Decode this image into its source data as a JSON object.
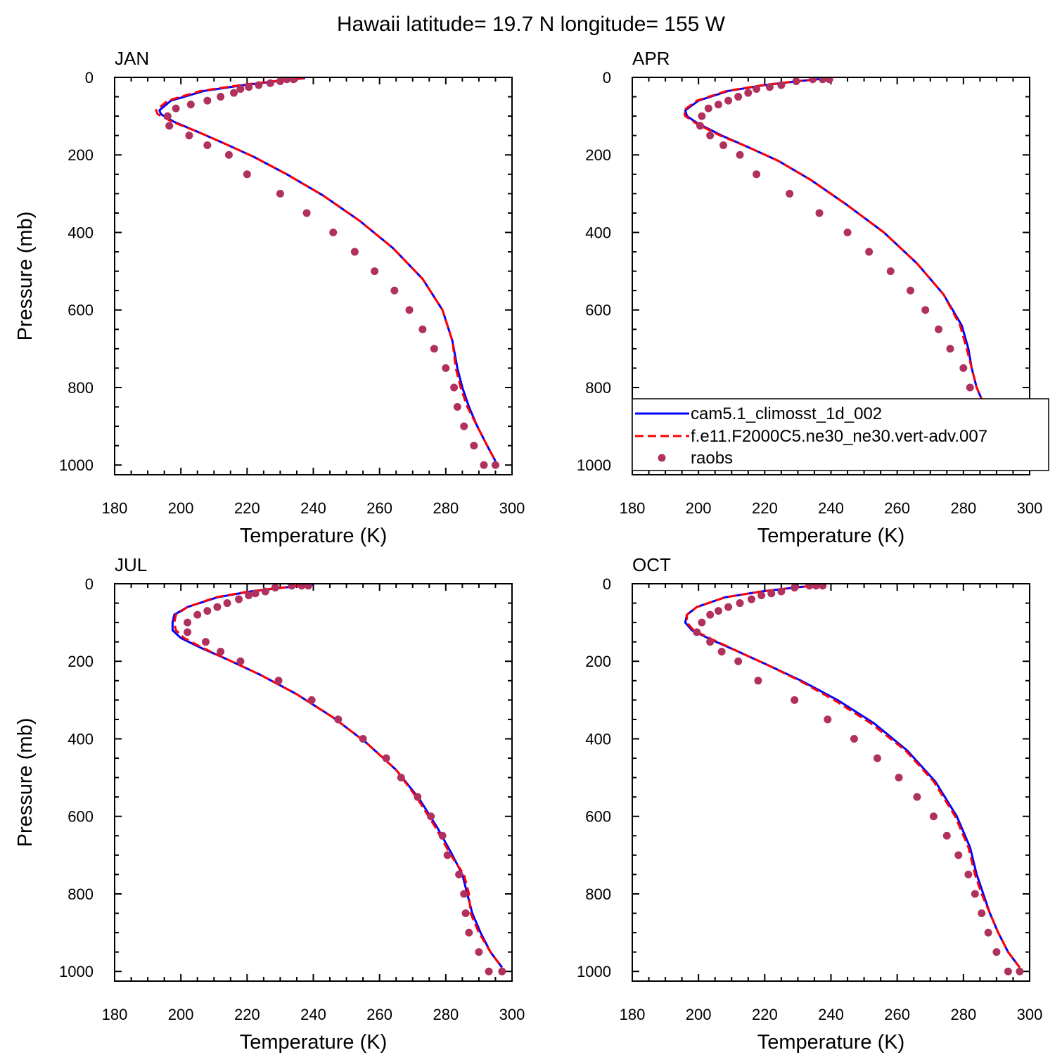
{
  "title": "Hawaii  latitude= 19.7 N longitude= 155 W",
  "legend": {
    "placement": "inside APR panel, bottom",
    "entries": [
      {
        "label": "cam5.1_climosst_1d_002",
        "color": "#0000ff",
        "style": "solid"
      },
      {
        "label": "f.e11.F2000C5.ne30_ne30.vert-adv.007",
        "color": "#ff0000",
        "style": "dashed"
      },
      {
        "label": "raobs",
        "color": "#b0305e",
        "style": "markers"
      }
    ]
  },
  "chart_data": [
    {
      "type": "line",
      "panel_label": "JAN",
      "xlabel": "Temperature (K)",
      "ylabel": "Pressure (mb)",
      "xlim": [
        180,
        300
      ],
      "ylim": [
        1025,
        0
      ],
      "xticks": [
        180,
        200,
        220,
        240,
        260,
        280,
        300
      ],
      "yticks": [
        0,
        200,
        400,
        600,
        800,
        1000
      ],
      "grid": false,
      "series": [
        {
          "name": "cam5.1_climosst_1d_002",
          "color": "#0000ff",
          "style": "solid",
          "x": [
            237.5,
            229,
            219,
            207,
            197,
            193.5,
            194,
            198,
            205,
            213,
            222,
            232,
            243,
            254,
            264,
            273,
            279,
            282,
            283.5,
            285,
            287,
            289.5,
            292.5,
            295
          ],
          "y": [
            2,
            10,
            20,
            35,
            60,
            85,
            95,
            115,
            140,
            170,
            205,
            250,
            305,
            370,
            440,
            520,
            600,
            680,
            750,
            800,
            850,
            900,
            950,
            990
          ]
        },
        {
          "name": "f.e11.F2000C5.ne30_ne30.vert-adv.007",
          "color": "#ff0000",
          "style": "dashed",
          "x": [
            237,
            228,
            218,
            206,
            196,
            192.5,
            193,
            197.5,
            205,
            213,
            222,
            232,
            243,
            254,
            264,
            273,
            279,
            282,
            283,
            284.5,
            286.5,
            289.5,
            292.5,
            295
          ],
          "y": [
            2,
            10,
            20,
            35,
            60,
            85,
            95,
            115,
            140,
            170,
            205,
            250,
            305,
            370,
            440,
            520,
            600,
            680,
            750,
            800,
            850,
            900,
            950,
            990
          ]
        },
        {
          "name": "raobs",
          "color": "#b0305e",
          "style": "markers",
          "x": [
            234,
            232,
            230,
            227,
            223.5,
            220.5,
            218,
            216,
            212,
            208,
            203,
            198.5,
            196,
            196.5,
            202.5,
            208,
            214.5,
            220,
            230,
            238,
            246,
            252.5,
            258.5,
            264.5,
            269,
            273,
            276.5,
            280,
            282.5,
            283.5,
            285.5,
            288.5,
            291.5,
            295
          ],
          "y": [
            5,
            5,
            10,
            15,
            20,
            25,
            30,
            40,
            50,
            60,
            70,
            80,
            100,
            125,
            150,
            175,
            200,
            250,
            300,
            350,
            400,
            450,
            500,
            550,
            600,
            650,
            700,
            750,
            800,
            850,
            900,
            950,
            1000,
            1000
          ]
        }
      ]
    },
    {
      "type": "line",
      "panel_label": "APR",
      "xlabel": "Temperature (K)",
      "ylabel": "",
      "xlim": [
        180,
        300
      ],
      "ylim": [
        1025,
        0
      ],
      "xticks": [
        180,
        200,
        220,
        240,
        260,
        280,
        300
      ],
      "yticks": [
        0,
        200,
        400,
        600,
        800,
        1000
      ],
      "grid": false,
      "series": [
        {
          "name": "cam5.1_climosst_1d_002",
          "color": "#0000ff",
          "style": "solid",
          "x": [
            239.5,
            230,
            220,
            209,
            200,
            196,
            196.5,
            200,
            207,
            215,
            224,
            234,
            245,
            256,
            266,
            274,
            279.5,
            281.5,
            282.5,
            284,
            286.5,
            289.5,
            292.5,
            295
          ],
          "y": [
            2,
            10,
            20,
            35,
            60,
            85,
            100,
            120,
            150,
            180,
            215,
            265,
            330,
            400,
            480,
            560,
            640,
            700,
            750,
            800,
            850,
            900,
            950,
            990
          ]
        },
        {
          "name": "f.e11.F2000C5.ne30_ne30.vert-adv.007",
          "color": "#ff0000",
          "style": "dashed",
          "x": [
            239,
            229.5,
            219.5,
            208.5,
            199.5,
            195.5,
            196,
            199.5,
            206.5,
            215,
            224,
            234,
            245,
            256,
            266,
            274,
            279,
            281,
            282.5,
            284,
            286.5,
            289.5,
            292.5,
            295
          ],
          "y": [
            2,
            10,
            20,
            35,
            60,
            85,
            100,
            120,
            150,
            180,
            215,
            265,
            330,
            400,
            480,
            560,
            640,
            700,
            750,
            800,
            850,
            900,
            950,
            990
          ]
        },
        {
          "name": "raobs",
          "color": "#b0305e",
          "style": "markers",
          "x": [
            239.5,
            237.5,
            234.5,
            229.5,
            225,
            221.5,
            217.5,
            215,
            212,
            209,
            206,
            203,
            201,
            200.5,
            203.5,
            207.5,
            212.5,
            217.5,
            227.5,
            236.5,
            245,
            251.5,
            258,
            264,
            268.5,
            272.5,
            276,
            280,
            282,
            283.5,
            285,
            288,
            291.5,
            295
          ],
          "y": [
            5,
            5,
            5,
            10,
            20,
            25,
            30,
            40,
            50,
            60,
            70,
            80,
            100,
            125,
            150,
            175,
            200,
            250,
            300,
            350,
            400,
            450,
            500,
            550,
            600,
            650,
            700,
            750,
            800,
            850,
            900,
            950,
            1000,
            1000
          ]
        }
      ]
    },
    {
      "type": "line",
      "panel_label": "JUL",
      "xlabel": "Temperature (K)",
      "ylabel": "Pressure (mb)",
      "xlim": [
        180,
        300
      ],
      "ylim": [
        1025,
        0
      ],
      "xticks": [
        180,
        200,
        220,
        240,
        260,
        280,
        300
      ],
      "yticks": [
        0,
        200,
        400,
        600,
        800,
        1000
      ],
      "grid": false,
      "series": [
        {
          "name": "cam5.1_climosst_1d_002",
          "color": "#0000ff",
          "style": "solid",
          "x": [
            240,
            231,
            221,
            211,
            202,
            198,
            197.5,
            197.5,
            200,
            206,
            214,
            224,
            235,
            246,
            256,
            265,
            272,
            277.5,
            282,
            285,
            286.5,
            288,
            290.5,
            293.5,
            297
          ],
          "y": [
            2,
            10,
            20,
            35,
            60,
            80,
            100,
            120,
            140,
            165,
            195,
            235,
            285,
            345,
            410,
            480,
            555,
            630,
            700,
            750,
            800,
            850,
            900,
            950,
            990
          ]
        },
        {
          "name": "f.e11.F2000C5.ne30_ne30.vert-adv.007",
          "color": "#ff0000",
          "style": "dashed",
          "x": [
            239.5,
            230.5,
            220.5,
            210.5,
            202,
            198.5,
            198,
            198.5,
            201,
            206.5,
            214,
            224,
            235,
            246,
            256,
            265,
            271.5,
            277,
            281.5,
            285.5,
            287,
            287.5,
            290,
            293.5,
            297
          ],
          "y": [
            2,
            10,
            20,
            35,
            60,
            80,
            100,
            120,
            140,
            165,
            195,
            235,
            285,
            345,
            410,
            480,
            555,
            630,
            700,
            750,
            800,
            850,
            900,
            950,
            990
          ]
        },
        {
          "name": "raobs",
          "color": "#b0305e",
          "style": "markers",
          "x": [
            238.5,
            236.5,
            233.5,
            228.5,
            225.5,
            222.5,
            220.5,
            217.5,
            214,
            211,
            208,
            205,
            202,
            202,
            207.5,
            212,
            218,
            229.5,
            239.5,
            247.5,
            255,
            262,
            266.5,
            271.5,
            275.5,
            279,
            280.5,
            284,
            285.5,
            286,
            287,
            290,
            293,
            297
          ],
          "y": [
            5,
            5,
            5,
            10,
            20,
            25,
            30,
            40,
            50,
            60,
            70,
            80,
            100,
            125,
            150,
            175,
            200,
            250,
            300,
            350,
            400,
            450,
            500,
            550,
            600,
            650,
            700,
            750,
            800,
            850,
            900,
            950,
            1000,
            1000
          ]
        }
      ]
    },
    {
      "type": "line",
      "panel_label": "OCT",
      "xlabel": "Temperature (K)",
      "ylabel": "",
      "xlim": [
        180,
        300
      ],
      "ylim": [
        1025,
        0
      ],
      "xticks": [
        180,
        200,
        220,
        240,
        260,
        280,
        300
      ],
      "yticks": [
        0,
        200,
        400,
        600,
        800,
        1000
      ],
      "grid": false,
      "series": [
        {
          "name": "cam5.1_climosst_1d_002",
          "color": "#0000ff",
          "style": "solid",
          "x": [
            238,
            229,
            219,
            208,
            199.5,
            196.5,
            196,
            198,
            204,
            212,
            221,
            231,
            242,
            253,
            263,
            271.5,
            278,
            282,
            284,
            286,
            288,
            290.5,
            293.5,
            297
          ],
          "y": [
            2,
            10,
            20,
            35,
            60,
            80,
            100,
            120,
            145,
            175,
            210,
            250,
            300,
            360,
            430,
            510,
            600,
            680,
            750,
            800,
            850,
            900,
            950,
            990
          ]
        },
        {
          "name": "f.e11.F2000C5.ne30_ne30.vert-adv.007",
          "color": "#ff0000",
          "style": "dashed",
          "x": [
            238,
            229,
            219,
            208,
            199.5,
            196.5,
            196.5,
            198.5,
            204.5,
            212,
            221,
            230.5,
            241,
            252,
            262.5,
            271,
            277.5,
            281.5,
            283.5,
            285.5,
            288,
            290.5,
            293.5,
            297
          ],
          "y": [
            2,
            10,
            20,
            35,
            60,
            80,
            100,
            120,
            145,
            175,
            210,
            250,
            300,
            360,
            430,
            510,
            600,
            680,
            750,
            800,
            850,
            900,
            950,
            990
          ]
        },
        {
          "name": "raobs",
          "color": "#b0305e",
          "style": "markers",
          "x": [
            237.5,
            235.5,
            233.5,
            229,
            225,
            222,
            219,
            216,
            212.5,
            209,
            206,
            203.5,
            201,
            199.5,
            203.5,
            207,
            212,
            218,
            229,
            239,
            247,
            254,
            260.5,
            266,
            271,
            275,
            278.5,
            281.5,
            283.5,
            285.5,
            287.5,
            290,
            293.5,
            297
          ],
          "y": [
            5,
            5,
            5,
            10,
            20,
            25,
            30,
            40,
            50,
            60,
            70,
            80,
            100,
            125,
            150,
            175,
            200,
            250,
            300,
            350,
            400,
            450,
            500,
            550,
            600,
            650,
            700,
            750,
            800,
            850,
            900,
            950,
            1000,
            1000
          ]
        }
      ]
    }
  ]
}
